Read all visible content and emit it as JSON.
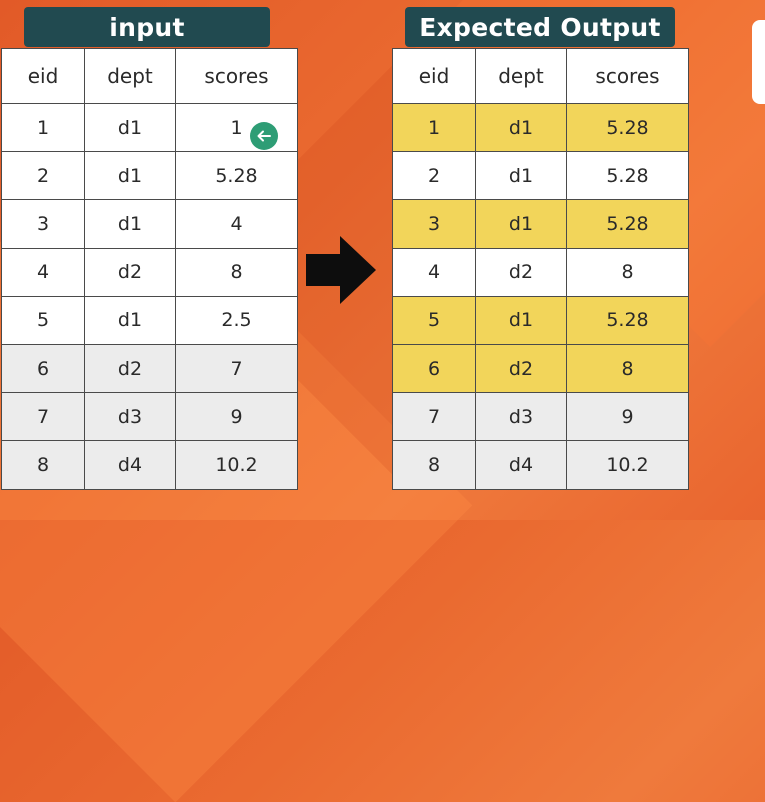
{
  "input_title": "input",
  "output_title": "Expected Output",
  "columns": [
    "eid",
    "dept",
    "scores"
  ],
  "input_rows": [
    [
      "1",
      "d1",
      "1"
    ],
    [
      "2",
      "d1",
      "5.28"
    ],
    [
      "3",
      "d1",
      "4"
    ],
    [
      "4",
      "d2",
      "8"
    ],
    [
      "5",
      "d1",
      "2.5"
    ],
    [
      "6",
      "d2",
      "7"
    ],
    [
      "7",
      "d3",
      "9"
    ],
    [
      "8",
      "d4",
      "10.2"
    ]
  ],
  "output_rows": [
    [
      "1",
      "d1",
      "5.28"
    ],
    [
      "2",
      "d1",
      "5.28"
    ],
    [
      "3",
      "d1",
      "5.28"
    ],
    [
      "4",
      "d2",
      "8"
    ],
    [
      "5",
      "d1",
      "5.28"
    ],
    [
      "6",
      "d2",
      "8"
    ],
    [
      "7",
      "d3",
      "9"
    ],
    [
      "8",
      "d4",
      "10.2"
    ]
  ],
  "colors": {
    "title_bg": "#214a50",
    "highlight": "#f2d55a",
    "alt_row": "#ececec",
    "cursor": "#2e9d75"
  },
  "icons": {
    "arrow": "right-arrow-icon",
    "cursor": "pointer-cursor-icon"
  }
}
